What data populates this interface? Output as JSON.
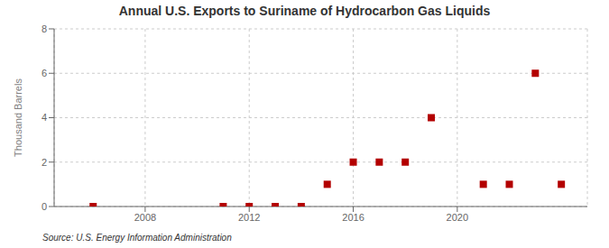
{
  "chart_data": {
    "type": "scatter",
    "title": "Annual U.S. Exports to Suriname of Hydrocarbon Gas Liquids",
    "ylabel": "Thousand Barrels",
    "annotation": "Source: U.S. Energy Information Administration",
    "x": [
      2006,
      2011,
      2012,
      2013,
      2014,
      2015,
      2016,
      2017,
      2018,
      2019,
      2021,
      2022,
      2023,
      2024
    ],
    "values": [
      0,
      0,
      0,
      0,
      0,
      1,
      2,
      2,
      2,
      4,
      1,
      1,
      6,
      1
    ],
    "color": "#b30000",
    "marker": "square",
    "xlim": [
      2004.5,
      2025
    ],
    "ylim": [
      0,
      8
    ],
    "xticks": [
      2008,
      2012,
      2016,
      2020
    ],
    "yticks": [
      0,
      2,
      4,
      6,
      8
    ],
    "grid": true
  }
}
